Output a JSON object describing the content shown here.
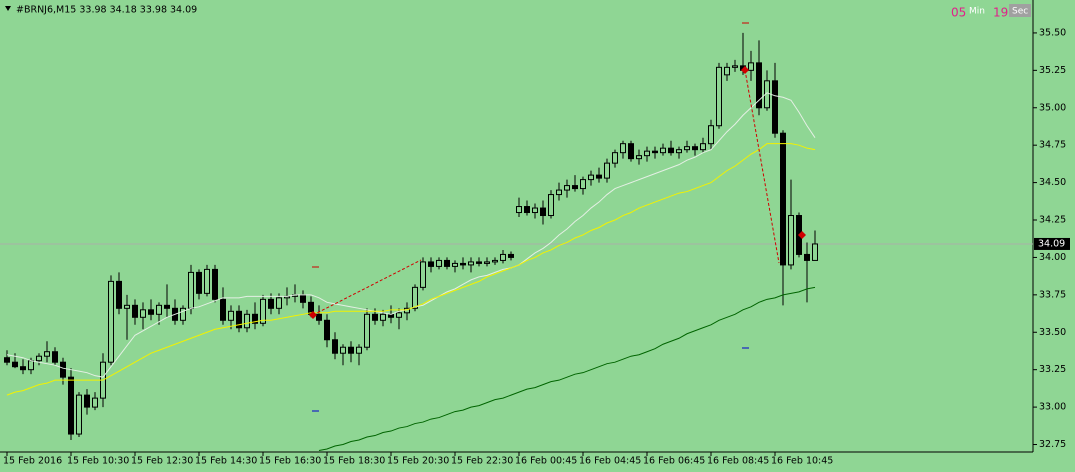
{
  "chart_data": {
    "type": "candlestick",
    "title": "#BRNJ6,M15  33.98 34.18 33.98 34.09",
    "timer": {
      "minutes": "05",
      "minutes_unit": "Min",
      "seconds": "19",
      "seconds_unit": "Sec"
    },
    "current_price": 34.09,
    "background": "#8fd694",
    "colors": {
      "bull": "#8fd694",
      "bear": "#000000",
      "outline": "#000000"
    },
    "categories": [
      "15 Feb 2016",
      null,
      null,
      null,
      null,
      null,
      null,
      null,
      "15 Feb 10:30",
      null,
      null,
      null,
      null,
      null,
      null,
      null,
      "15 Feb 12:30",
      null,
      null,
      null,
      null,
      null,
      null,
      null,
      "15 Feb 14:30",
      null,
      null,
      null,
      null,
      null,
      null,
      null,
      "15 Feb 16:30",
      null,
      null,
      null,
      null,
      null,
      null,
      null,
      "15 Feb 18:30",
      null,
      null,
      null,
      null,
      null,
      null,
      null,
      "15 Feb 20:30",
      null,
      null,
      null,
      null,
      null,
      null,
      null,
      "15 Feb 22:30",
      null,
      null,
      null,
      null,
      null,
      null,
      null,
      "16 Feb 00:45",
      null,
      null,
      null,
      null,
      null,
      null,
      null,
      "16 Feb 04:45",
      null,
      null,
      null,
      null,
      null,
      null,
      null,
      "16 Feb 06:45",
      null,
      null,
      null,
      null,
      null,
      null,
      null,
      "16 Feb 08:45",
      null,
      null,
      null,
      null,
      null,
      null,
      null,
      "16 Feb 10:45",
      null,
      null,
      null,
      null,
      null
    ],
    "open": [
      33.33,
      33.3,
      33.27,
      33.25,
      33.31,
      33.34,
      33.37,
      33.3,
      33.2,
      32.82,
      33.08,
      33.0,
      33.06,
      33.3,
      33.84,
      33.66,
      33.68,
      33.6,
      33.65,
      33.62,
      33.68,
      33.66,
      33.58,
      33.66,
      33.9,
      33.76,
      33.92,
      33.72,
      33.58,
      33.64,
      33.53,
      33.62,
      33.56,
      33.72,
      33.66,
      33.73,
      33.74,
      33.75,
      33.7,
      33.62,
      33.58,
      33.45,
      33.36,
      33.4,
      33.36,
      33.4,
      33.62,
      33.58,
      33.62,
      33.6,
      33.63,
      33.66,
      33.8,
      33.97,
      33.94,
      33.98,
      33.94,
      33.96,
      33.95,
      33.97,
      33.96,
      33.97,
      33.98,
      34.02,
      34.3,
      34.34,
      34.3,
      34.33,
      34.28,
      34.42,
      34.45,
      34.48,
      34.46,
      34.52,
      34.55,
      34.53,
      34.63,
      34.7,
      34.76,
      34.66,
      34.68,
      34.71,
      34.7,
      34.73,
      34.7,
      34.72,
      34.74,
      34.72,
      34.76,
      34.88,
      35.22,
      35.27,
      35.28,
      35.25,
      35.3,
      35.0,
      35.18,
      34.83,
      33.95,
      34.28,
      34.02,
      33.98
    ],
    "high": [
      33.38,
      33.36,
      33.32,
      33.33,
      33.36,
      33.44,
      33.4,
      33.33,
      33.26,
      33.1,
      33.12,
      33.1,
      33.36,
      33.88,
      33.9,
      33.75,
      33.72,
      33.7,
      33.72,
      33.7,
      33.82,
      33.72,
      33.68,
      33.95,
      33.92,
      33.95,
      33.95,
      33.8,
      33.68,
      33.68,
      33.65,
      33.7,
      33.75,
      33.76,
      33.76,
      33.8,
      33.82,
      33.78,
      33.74,
      33.68,
      33.62,
      33.5,
      33.42,
      33.44,
      33.42,
      33.66,
      33.66,
      33.65,
      33.68,
      33.66,
      33.7,
      33.82,
      34.0,
      34.0,
      34.0,
      34.0,
      33.98,
      34.0,
      34.0,
      34.0,
      34.0,
      34.0,
      34.05,
      34.04,
      34.4,
      34.38,
      34.36,
      34.38,
      34.45,
      34.5,
      34.52,
      34.55,
      34.54,
      34.58,
      34.6,
      34.66,
      34.72,
      34.78,
      34.78,
      34.72,
      34.74,
      34.74,
      34.76,
      34.78,
      34.74,
      34.78,
      34.76,
      34.8,
      34.92,
      35.3,
      35.3,
      35.32,
      35.5,
      35.38,
      35.45,
      35.25,
      35.3,
      34.85,
      34.52,
      34.3,
      34.1,
      34.18
    ],
    "low": [
      33.28,
      33.26,
      33.22,
      33.22,
      33.28,
      33.3,
      33.28,
      33.15,
      32.78,
      32.8,
      32.95,
      32.98,
      33.0,
      33.28,
      33.62,
      33.45,
      33.55,
      33.52,
      33.58,
      33.55,
      33.6,
      33.55,
      33.55,
      33.62,
      33.72,
      33.74,
      33.7,
      33.55,
      33.52,
      33.5,
      33.5,
      33.52,
      33.54,
      33.62,
      33.62,
      33.68,
      33.7,
      33.66,
      33.6,
      33.55,
      33.4,
      33.32,
      33.28,
      33.3,
      33.28,
      33.38,
      33.55,
      33.54,
      33.56,
      33.52,
      33.58,
      33.64,
      33.78,
      33.9,
      33.92,
      33.92,
      33.9,
      33.92,
      33.9,
      33.94,
      33.94,
      33.95,
      33.96,
      33.98,
      34.27,
      34.28,
      34.26,
      34.22,
      34.26,
      34.38,
      34.4,
      34.44,
      34.42,
      34.48,
      34.5,
      34.5,
      34.6,
      34.66,
      34.64,
      34.62,
      34.64,
      34.66,
      34.68,
      34.68,
      34.66,
      34.7,
      34.68,
      34.7,
      34.72,
      34.86,
      35.18,
      35.24,
      35.22,
      35.18,
      34.95,
      34.98,
      34.8,
      33.68,
      33.92,
      34.0,
      33.7,
      33.98
    ],
    "close": [
      33.3,
      33.27,
      33.25,
      33.31,
      33.34,
      33.37,
      33.3,
      33.2,
      32.82,
      33.08,
      33.0,
      33.06,
      33.3,
      33.84,
      33.66,
      33.68,
      33.6,
      33.65,
      33.62,
      33.68,
      33.66,
      33.58,
      33.66,
      33.9,
      33.76,
      33.92,
      33.72,
      33.58,
      33.64,
      33.53,
      33.62,
      33.56,
      33.72,
      33.66,
      33.73,
      33.74,
      33.75,
      33.7,
      33.62,
      33.58,
      33.45,
      33.36,
      33.4,
      33.36,
      33.4,
      33.62,
      33.58,
      33.62,
      33.6,
      33.63,
      33.66,
      33.8,
      33.97,
      33.94,
      33.98,
      33.94,
      33.96,
      33.95,
      33.97,
      33.96,
      33.97,
      33.98,
      34.02,
      34.0,
      34.34,
      34.3,
      34.33,
      34.28,
      34.42,
      34.45,
      34.48,
      34.46,
      34.52,
      34.55,
      34.53,
      34.63,
      34.7,
      34.76,
      34.66,
      34.68,
      34.71,
      34.7,
      34.73,
      34.7,
      34.72,
      34.74,
      34.72,
      34.76,
      34.88,
      35.27,
      35.27,
      35.28,
      35.25,
      35.3,
      35.0,
      35.18,
      34.83,
      33.95,
      34.28,
      34.02,
      33.98,
      34.09
    ],
    "moving_averages": [
      {
        "color": "#e4efe4",
        "values": [
          33.35,
          33.34,
          33.33,
          33.31,
          33.3,
          33.29,
          33.28,
          33.26,
          33.25,
          33.24,
          33.23,
          33.21,
          33.2,
          33.27,
          33.34,
          33.41,
          33.48,
          33.51,
          33.54,
          33.57,
          33.6,
          33.62,
          33.64,
          33.66,
          33.67,
          33.69,
          33.71,
          33.73,
          33.73,
          33.73,
          33.74,
          33.74,
          33.74,
          33.74,
          33.74,
          33.74,
          33.75,
          33.75,
          33.75,
          33.73,
          33.7,
          33.69,
          33.68,
          33.67,
          33.66,
          33.65,
          33.64,
          33.63,
          33.62,
          33.64,
          33.65,
          33.67,
          33.68,
          33.71,
          33.74,
          33.77,
          33.79,
          33.82,
          33.85,
          33.87,
          33.88,
          33.9,
          33.92,
          33.93,
          33.95,
          33.99,
          34.03,
          34.06,
          34.1,
          34.15,
          34.19,
          34.24,
          34.28,
          34.33,
          34.37,
          34.42,
          34.46,
          34.48,
          34.5,
          34.52,
          34.54,
          34.56,
          34.58,
          34.6,
          34.62,
          34.65,
          34.67,
          34.7,
          34.72,
          34.78,
          34.84,
          34.89,
          34.95,
          35.0,
          35.05,
          35.1,
          35.08,
          35.07,
          35.05,
          34.97,
          34.88,
          34.8
        ]
      },
      {
        "color": "#f2f200",
        "values": [
          33.08,
          33.1,
          33.11,
          33.13,
          33.15,
          33.16,
          33.18,
          33.18,
          33.18,
          33.18,
          33.18,
          33.18,
          33.18,
          33.21,
          33.24,
          33.27,
          33.3,
          33.33,
          33.36,
          33.38,
          33.4,
          33.42,
          33.44,
          33.46,
          33.48,
          33.5,
          33.52,
          33.53,
          33.54,
          33.55,
          33.56,
          33.57,
          33.58,
          33.58,
          33.59,
          33.6,
          33.61,
          33.62,
          33.63,
          33.63,
          33.63,
          33.64,
          33.64,
          33.64,
          33.64,
          33.64,
          33.64,
          33.64,
          33.65,
          33.65,
          33.65,
          33.67,
          33.69,
          33.72,
          33.74,
          33.76,
          33.78,
          33.8,
          33.82,
          33.84,
          33.87,
          33.89,
          33.91,
          33.93,
          33.95,
          33.98,
          34.0,
          34.03,
          34.05,
          34.08,
          34.1,
          34.13,
          34.15,
          34.18,
          34.2,
          34.23,
          34.25,
          34.28,
          34.3,
          34.33,
          34.35,
          34.37,
          34.39,
          34.41,
          34.43,
          34.44,
          34.46,
          34.48,
          34.5,
          34.54,
          34.58,
          34.61,
          34.65,
          34.69,
          34.72,
          34.76,
          34.76,
          34.76,
          34.76,
          34.75,
          34.73,
          34.72
        ]
      },
      {
        "color": "#006400",
        "values": [
          null,
          null,
          null,
          null,
          null,
          null,
          null,
          null,
          null,
          null,
          null,
          null,
          null,
          null,
          null,
          null,
          null,
          null,
          null,
          null,
          null,
          null,
          null,
          null,
          null,
          null,
          null,
          null,
          null,
          null,
          null,
          null,
          null,
          null,
          null,
          null,
          null,
          null,
          null,
          32.71,
          32.72,
          32.74,
          32.75,
          32.77,
          32.78,
          32.8,
          32.81,
          32.83,
          32.84,
          32.86,
          32.87,
          32.89,
          32.9,
          32.92,
          32.93,
          32.95,
          32.97,
          32.98,
          33.0,
          33.01,
          33.03,
          33.05,
          33.06,
          33.08,
          33.1,
          33.12,
          33.13,
          33.15,
          33.17,
          33.18,
          33.2,
          33.22,
          33.23,
          33.25,
          33.27,
          33.29,
          33.3,
          33.32,
          33.34,
          33.35,
          33.37,
          33.39,
          33.42,
          33.44,
          33.46,
          33.49,
          33.51,
          33.53,
          33.55,
          33.58,
          33.6,
          33.62,
          33.65,
          33.67,
          33.7,
          33.72,
          33.73,
          33.75,
          33.76,
          33.77,
          33.79,
          33.8
        ]
      }
    ],
    "ylim": [
      32.7,
      35.72
    ],
    "yticks": [
      32.75,
      {
        "value": 33,
        "label": "33.00"
      },
      33.25,
      {
        "value": 33.5,
        "label": "33.50"
      },
      33.75,
      {
        "value": 34,
        "label": "34.00"
      },
      34.25,
      {
        "value": 34.5,
        "label": "34.50"
      },
      34.75,
      {
        "value": 35,
        "label": "35.00"
      },
      35.25,
      {
        "value": 35.5,
        "label": "35.50"
      }
    ]
  }
}
